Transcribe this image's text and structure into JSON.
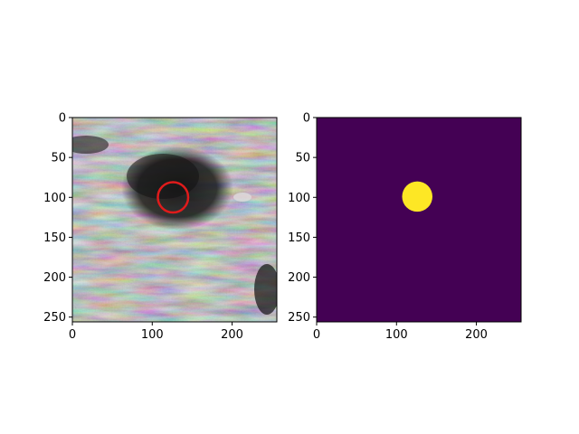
{
  "chart_data": [
    {
      "type": "heatmap",
      "kind": "ultrasound-image",
      "colormap": "gray",
      "x_ticks": [
        0,
        100,
        200
      ],
      "y_ticks": [
        0,
        50,
        100,
        150,
        200,
        250
      ],
      "xlim": [
        0,
        256
      ],
      "ylim": [
        256,
        0
      ],
      "annotation": {
        "shape": "circle",
        "cx": 126,
        "cy": 100,
        "r": 19,
        "color": "#e01b1b"
      }
    },
    {
      "type": "heatmap",
      "kind": "mask",
      "colormap": "viridis",
      "background_color": "#440154",
      "foreground_color": "#fde725",
      "x_ticks": [
        0,
        100,
        200
      ],
      "y_ticks": [
        0,
        50,
        100,
        150,
        200,
        250
      ],
      "xlim": [
        0,
        256
      ],
      "ylim": [
        256,
        0
      ],
      "mask_circle": {
        "cx": 126,
        "cy": 99,
        "r": 19
      }
    }
  ]
}
